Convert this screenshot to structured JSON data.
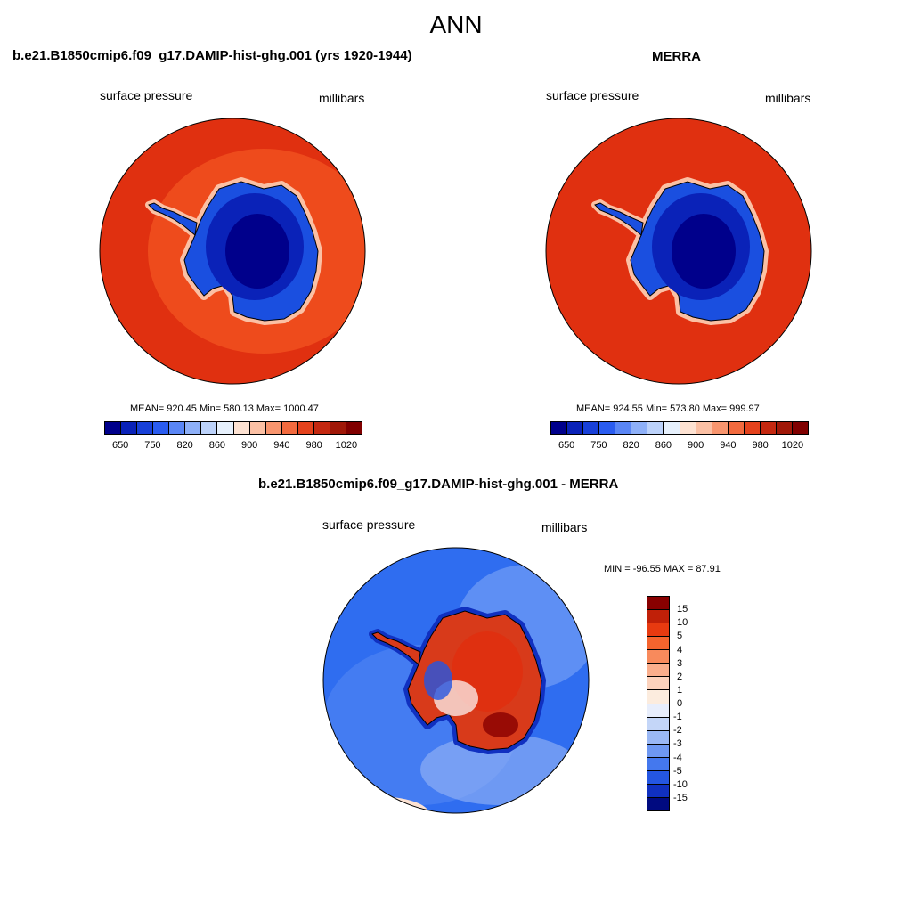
{
  "figure": {
    "title": "ANN"
  },
  "panel_left": {
    "title": "b.e21.B1850cmip6.f09_g17.DAMIP-hist-ghg.001 (yrs 1920-1944)",
    "left_label": "surface pressure",
    "right_label": "millibars",
    "stats": "MEAN= 920.45  Min= 580.13  Max= 1000.47",
    "ocean_color": "#e03010",
    "land_color": "#1a4fe0"
  },
  "panel_right": {
    "title": "MERRA",
    "left_label": "surface pressure",
    "right_label": "millibars",
    "stats": "MEAN= 924.55  Min= 573.80  Max= 999.97",
    "ocean_color": "#e03010",
    "land_color": "#1a4fe0"
  },
  "panel_diff": {
    "title": "b.e21.B1850cmip6.f09_g17.DAMIP-hist-ghg.001 - MERRA",
    "left_label": "surface pressure",
    "right_label": "millibars",
    "stats": "MIN = -96.55 MAX =  87.91",
    "ocean_color": "#2f6df0",
    "land_color": "#d83a1a"
  },
  "colorbar_abs": {
    "colors": [
      "#00008b",
      "#0a22b8",
      "#1840d8",
      "#2a5cf0",
      "#5a86f5",
      "#8eb0f8",
      "#bcd2fa",
      "#e6f0fc",
      "#fde2d2",
      "#fbc0a4",
      "#f8956e",
      "#f26a3e",
      "#e4421c",
      "#c42810",
      "#a01808",
      "#800000"
    ],
    "ticks": [
      "650",
      "750",
      "820",
      "860",
      "900",
      "940",
      "980",
      "1020"
    ]
  },
  "colorbar_diff": {
    "colors": [
      "#880000",
      "#c02008",
      "#e83a10",
      "#f5642e",
      "#f88a5c",
      "#faae8c",
      "#fcd2bc",
      "#fcecde",
      "#e8eefc",
      "#c4d6f8",
      "#9ab8f5",
      "#6e98f2",
      "#4478ee",
      "#2456e2",
      "#1030c0",
      "#000a80"
    ],
    "ticks": [
      "15",
      "10",
      "5",
      "4",
      "3",
      "2",
      "1",
      "0",
      "-1",
      "-2",
      "-3",
      "-4",
      "-5",
      "-10",
      "-15"
    ]
  }
}
